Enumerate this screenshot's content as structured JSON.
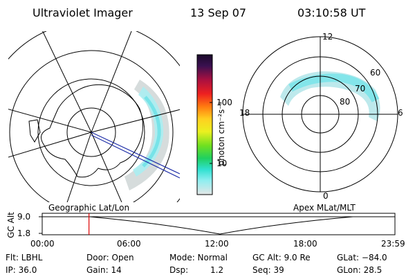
{
  "header": {
    "instrument": "Ultraviolet Imager",
    "date": "13 Sep 07",
    "time": "03:10:58 UT"
  },
  "colorbar": {
    "unit_label": "photon cm⁻²s⁻¹",
    "ticks": [
      "100",
      "10"
    ]
  },
  "polar_plot": {
    "lat_labels": [
      "60",
      "70",
      "80"
    ],
    "mlt_labels": [
      "12",
      "18",
      "6",
      "0"
    ]
  },
  "panel_labels": {
    "left": "Geographic Lat/Lon",
    "right": "Apex MLat/MLT"
  },
  "timeline": {
    "axis_label": "GC Alt",
    "y_ticks": [
      "9.0",
      "1.8"
    ],
    "x_ticks": [
      "00:00",
      "06:00",
      "12:00",
      "18:00",
      "23:59"
    ],
    "marker_time": "03:10:58",
    "marker_color": "#dd0000"
  },
  "status": {
    "filter": "Flt: LBHL",
    "door": "Door: Open",
    "mode": "Mode: Normal",
    "gc_alt": "GC Alt: 9.0 Re",
    "glat": "GLat: −84.0",
    "ip": "IP: 36.0",
    "gain": "Gain: 14",
    "dsp_label": "Dsp:",
    "dsp_value": "1.2",
    "seq": "Seq: 39",
    "glon": "GLon:  28.5"
  },
  "colors": {
    "aurora": "#7fe3ea",
    "aurora_faint": "#cfd8d8",
    "track": "#1f2fa8"
  }
}
